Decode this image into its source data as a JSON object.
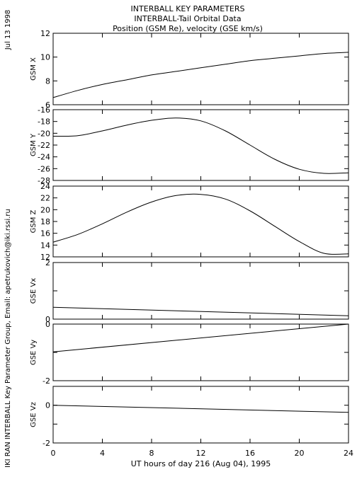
{
  "header": {
    "line1": "INTERBALL KEY PARAMETERS",
    "line2": "INTERBALL-Tail Orbital Data",
    "line3": "Position (GSM Re), velocity (GSE km/s)"
  },
  "side_date": "Jul 13 1998",
  "side_credit": "IKI RAN INTERBALL Key Parameter Group, Email: apetrukovich@iki.rssi.ru",
  "colors": {
    "line": "#000000",
    "background": "#ffffff"
  },
  "chart_data": [
    {
      "type": "line",
      "ylabel": "GSM X",
      "x_ticks": [
        0,
        4,
        8,
        12,
        16,
        20,
        24
      ],
      "y_ticks": [
        6,
        8,
        10,
        12
      ],
      "ylim": [
        6,
        12
      ],
      "xlim": [
        0,
        24
      ],
      "series": [
        {
          "x": [
            0,
            2,
            4,
            6,
            8,
            10,
            12,
            14,
            16,
            18,
            20,
            22,
            24
          ],
          "values": [
            6.6,
            7.2,
            7.7,
            8.1,
            8.5,
            8.8,
            9.1,
            9.4,
            9.7,
            9.9,
            10.1,
            10.3,
            10.4
          ]
        }
      ]
    },
    {
      "type": "line",
      "ylabel": "GSM Y",
      "x_ticks": [
        0,
        4,
        8,
        12,
        16,
        20,
        24
      ],
      "y_ticks": [
        -28,
        -26,
        -24,
        -22,
        -20,
        -18,
        -16
      ],
      "ylim": [
        -28,
        -16
      ],
      "xlim": [
        0,
        24
      ],
      "series": [
        {
          "x": [
            0,
            2,
            4,
            6,
            8,
            10,
            12,
            14,
            16,
            18,
            20,
            22,
            24
          ],
          "values": [
            -20.5,
            -20.4,
            -19.6,
            -18.6,
            -17.8,
            -17.4,
            -17.9,
            -19.6,
            -22.0,
            -24.4,
            -26.1,
            -26.8,
            -26.7
          ]
        }
      ]
    },
    {
      "type": "line",
      "ylabel": "GSM Z",
      "x_ticks": [
        0,
        4,
        8,
        12,
        16,
        20,
        24
      ],
      "y_ticks": [
        12,
        14,
        16,
        18,
        20,
        22,
        24
      ],
      "ylim": [
        12,
        24
      ],
      "xlim": [
        0,
        24
      ],
      "series": [
        {
          "x": [
            0,
            2,
            4,
            6,
            8,
            10,
            12,
            14,
            16,
            18,
            20,
            22,
            24
          ],
          "values": [
            14.5,
            15.8,
            17.6,
            19.6,
            21.3,
            22.4,
            22.6,
            21.8,
            19.8,
            17.2,
            14.6,
            12.6,
            12.5
          ]
        }
      ]
    },
    {
      "type": "line",
      "ylabel": "GSE Vx",
      "x_ticks": [
        0,
        4,
        8,
        12,
        16,
        20,
        24
      ],
      "y_ticks": [
        0,
        1,
        2
      ],
      "y_tick_labels": [
        "0",
        "",
        "2"
      ],
      "ylim": [
        0,
        2
      ],
      "xlim": [
        0,
        24
      ],
      "series": [
        {
          "x": [
            0,
            24
          ],
          "values": [
            0.42,
            0.12
          ]
        }
      ]
    },
    {
      "type": "line",
      "ylabel": "GSE Vy",
      "x_ticks": [
        0,
        4,
        8,
        12,
        16,
        20,
        24
      ],
      "y_ticks": [
        -2,
        -1,
        0
      ],
      "y_tick_labels": [
        "-2",
        "",
        "0"
      ],
      "ylim": [
        -2,
        0
      ],
      "xlim": [
        0,
        24
      ],
      "series": [
        {
          "x": [
            0,
            24
          ],
          "values": [
            -0.98,
            0.0
          ]
        }
      ]
    },
    {
      "type": "line",
      "ylabel": "GSE Vz",
      "x_ticks": [
        0,
        4,
        8,
        12,
        16,
        20,
        24
      ],
      "x_tick_labels": [
        "0",
        "4",
        "8",
        "12",
        "16",
        "20",
        "24"
      ],
      "y_ticks": [
        -2,
        -1,
        0,
        1
      ],
      "y_tick_labels": [
        "-2",
        "",
        "0",
        ""
      ],
      "ylim": [
        -2,
        1
      ],
      "xlim": [
        0,
        24
      ],
      "xlabel": "UT hours of day 216 (Aug 04), 1995",
      "series": [
        {
          "x": [
            0,
            24
          ],
          "values": [
            0.0,
            -0.38
          ]
        }
      ]
    }
  ]
}
